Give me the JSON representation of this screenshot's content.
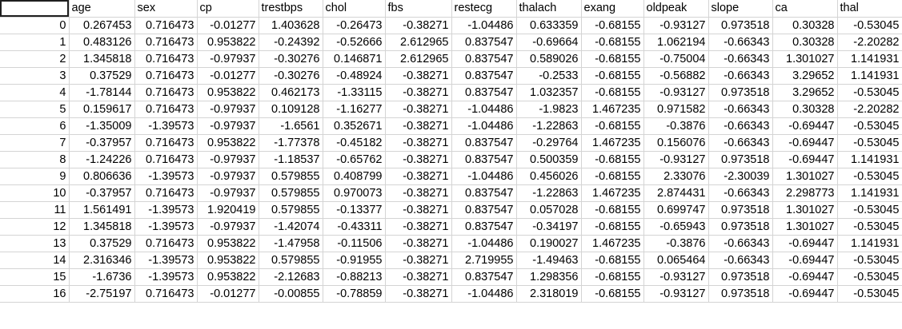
{
  "sheet": {
    "columns": [
      "",
      "age",
      "sex",
      "cp",
      "trestbps",
      "chol",
      "fbs",
      "restecg",
      "thalach",
      "exang",
      "oldpeak",
      "slope",
      "ca",
      "thal"
    ],
    "rows": [
      [
        "0",
        "0.267453",
        "0.716473",
        "-0.01277",
        "1.403628",
        "-0.26473",
        "-0.38271",
        "-1.04486",
        "0.633359",
        "-0.68155",
        "-0.93127",
        "0.973518",
        "0.30328",
        "-0.53045"
      ],
      [
        "1",
        "0.483126",
        "0.716473",
        "0.953822",
        "-0.24392",
        "-0.52666",
        "2.612965",
        "0.837547",
        "-0.69664",
        "-0.68155",
        "1.062194",
        "-0.66343",
        "0.30328",
        "-2.20282"
      ],
      [
        "2",
        "1.345818",
        "0.716473",
        "-0.97937",
        "-0.30276",
        "0.146871",
        "2.612965",
        "0.837547",
        "0.589026",
        "-0.68155",
        "-0.75004",
        "-0.66343",
        "1.301027",
        "1.141931"
      ],
      [
        "3",
        "0.37529",
        "0.716473",
        "-0.01277",
        "-0.30276",
        "-0.48924",
        "-0.38271",
        "0.837547",
        "-0.2533",
        "-0.68155",
        "-0.56882",
        "-0.66343",
        "3.29652",
        "1.141931"
      ],
      [
        "4",
        "-1.78144",
        "0.716473",
        "0.953822",
        "0.462173",
        "-1.33115",
        "-0.38271",
        "0.837547",
        "1.032357",
        "-0.68155",
        "-0.93127",
        "0.973518",
        "3.29652",
        "-0.53045"
      ],
      [
        "5",
        "0.159617",
        "0.716473",
        "-0.97937",
        "0.109128",
        "-1.16277",
        "-0.38271",
        "-1.04486",
        "-1.9823",
        "1.467235",
        "0.971582",
        "-0.66343",
        "0.30328",
        "-2.20282"
      ],
      [
        "6",
        "-1.35009",
        "-1.39573",
        "-0.97937",
        "-1.6561",
        "0.352671",
        "-0.38271",
        "-1.04486",
        "-1.22863",
        "-0.68155",
        "-0.3876",
        "-0.66343",
        "-0.69447",
        "-0.53045"
      ],
      [
        "7",
        "-0.37957",
        "0.716473",
        "0.953822",
        "-1.77378",
        "-0.45182",
        "-0.38271",
        "0.837547",
        "-0.29764",
        "1.467235",
        "0.156076",
        "-0.66343",
        "-0.69447",
        "-0.53045"
      ],
      [
        "8",
        "-1.24226",
        "0.716473",
        "-0.97937",
        "-1.18537",
        "-0.65762",
        "-0.38271",
        "0.837547",
        "0.500359",
        "-0.68155",
        "-0.93127",
        "0.973518",
        "-0.69447",
        "1.141931"
      ],
      [
        "9",
        "0.806636",
        "-1.39573",
        "-0.97937",
        "0.579855",
        "0.408799",
        "-0.38271",
        "-1.04486",
        "0.456026",
        "-0.68155",
        "2.33076",
        "-2.30039",
        "1.301027",
        "-0.53045"
      ],
      [
        "10",
        "-0.37957",
        "0.716473",
        "-0.97937",
        "0.579855",
        "0.970073",
        "-0.38271",
        "0.837547",
        "-1.22863",
        "1.467235",
        "2.874431",
        "-0.66343",
        "2.298773",
        "1.141931"
      ],
      [
        "11",
        "1.561491",
        "-1.39573",
        "1.920419",
        "0.579855",
        "-0.13377",
        "-0.38271",
        "0.837547",
        "0.057028",
        "-0.68155",
        "0.699747",
        "0.973518",
        "1.301027",
        "-0.53045"
      ],
      [
        "12",
        "1.345818",
        "-1.39573",
        "-0.97937",
        "-1.42074",
        "-0.43311",
        "-0.38271",
        "0.837547",
        "-0.34197",
        "-0.68155",
        "-0.65943",
        "0.973518",
        "1.301027",
        "-0.53045"
      ],
      [
        "13",
        "0.37529",
        "0.716473",
        "0.953822",
        "-1.47958",
        "-0.11506",
        "-0.38271",
        "-1.04486",
        "0.190027",
        "1.467235",
        "-0.3876",
        "-0.66343",
        "-0.69447",
        "1.141931"
      ],
      [
        "14",
        "2.316346",
        "-1.39573",
        "0.953822",
        "0.579855",
        "-0.91955",
        "-0.38271",
        "2.719955",
        "-1.49463",
        "-0.68155",
        "0.065464",
        "-0.66343",
        "-0.69447",
        "-0.53045"
      ],
      [
        "15",
        "-1.6736",
        "-1.39573",
        "0.953822",
        "-2.12683",
        "-0.88213",
        "-0.38271",
        "0.837547",
        "1.298356",
        "-0.68155",
        "-0.93127",
        "0.973518",
        "-0.69447",
        "-0.53045"
      ],
      [
        "16",
        "-2.75197",
        "0.716473",
        "-0.01277",
        "-0.00855",
        "-0.78859",
        "-0.38271",
        "-1.04486",
        "2.318019",
        "-0.68155",
        "-0.93127",
        "0.973518",
        "-0.69447",
        "-0.53045"
      ]
    ],
    "colors": {
      "grid_line": "#d4d4d4",
      "cursor_border": "#1f1f1f",
      "text": "#000000",
      "background": "#ffffff"
    }
  }
}
